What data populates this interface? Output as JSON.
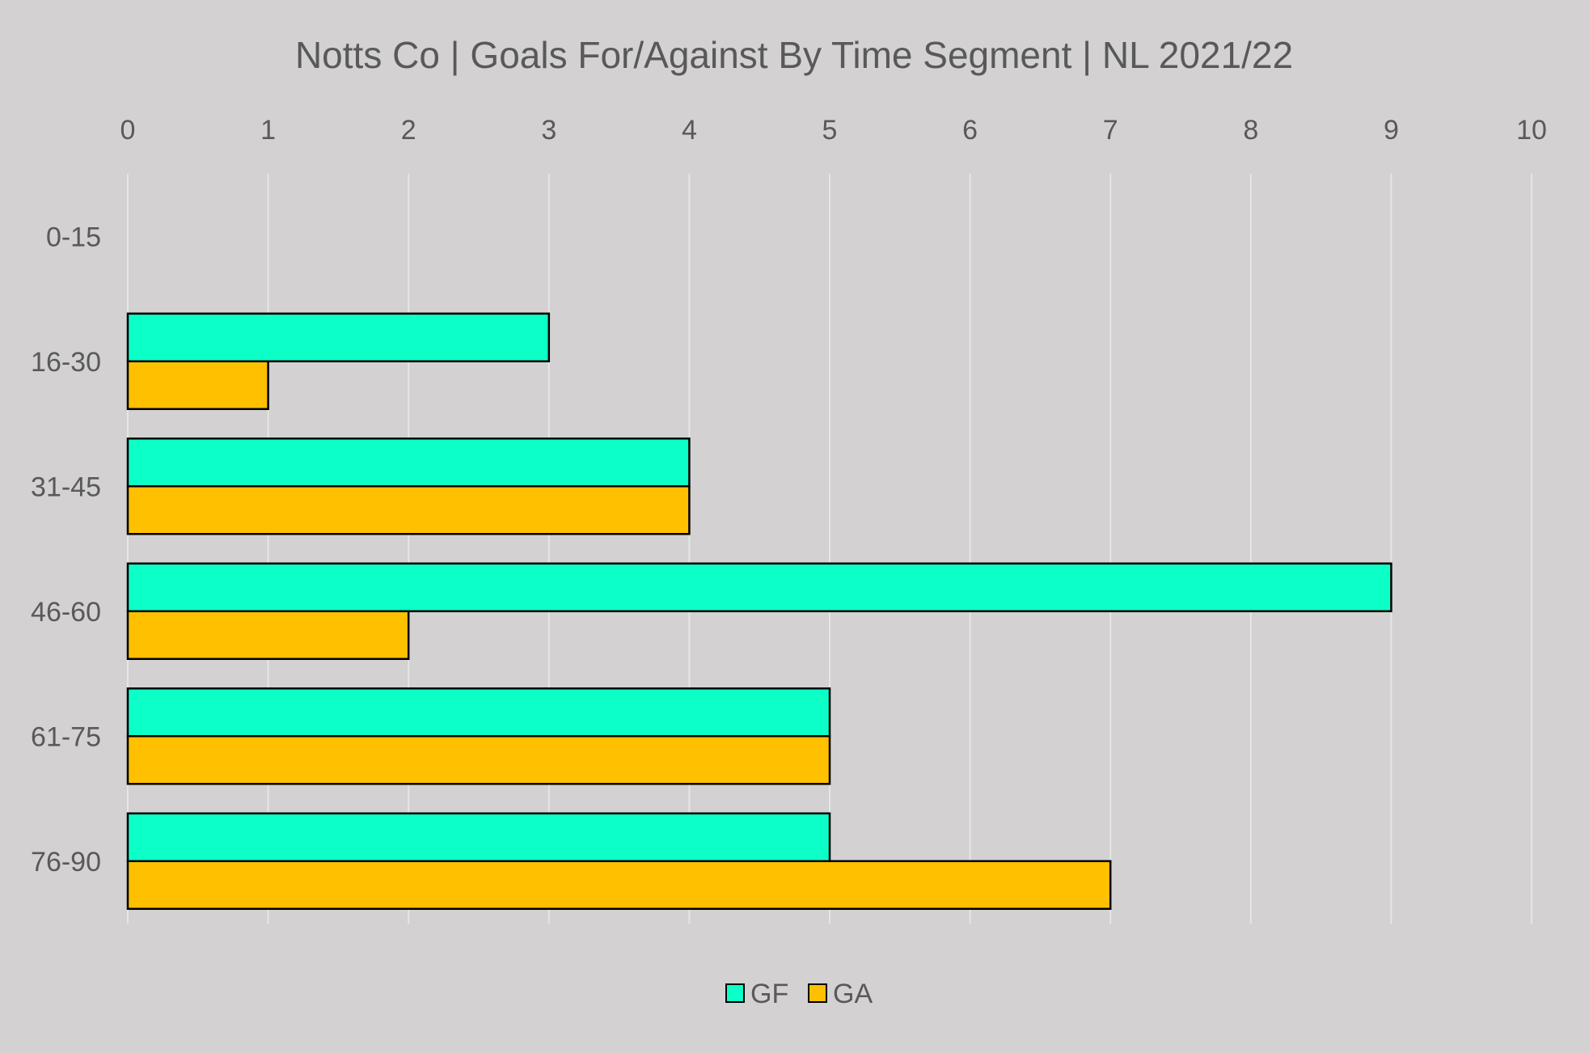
{
  "chart_data": {
    "type": "bar",
    "orientation": "horizontal",
    "title": "Notts Co | Goals For/Against By Time Segment | NL 2021/22",
    "xlabel": "",
    "ylabel": "",
    "categories": [
      "0-15",
      "16-30",
      "31-45",
      "46-60",
      "61-75",
      "76-90"
    ],
    "series": [
      {
        "name": "GF",
        "values": [
          0,
          3,
          4,
          9,
          5,
          5
        ],
        "color": "#0dffc8"
      },
      {
        "name": "GA",
        "values": [
          0,
          1,
          4,
          2,
          5,
          7
        ],
        "color": "#ffc000"
      }
    ],
    "xlim": [
      0,
      10
    ],
    "xticks": [
      "0",
      "1",
      "2",
      "3",
      "4",
      "5",
      "6",
      "7",
      "8",
      "9",
      "10"
    ],
    "x_axis_position": "top",
    "grid": true,
    "legend": "bottom"
  }
}
